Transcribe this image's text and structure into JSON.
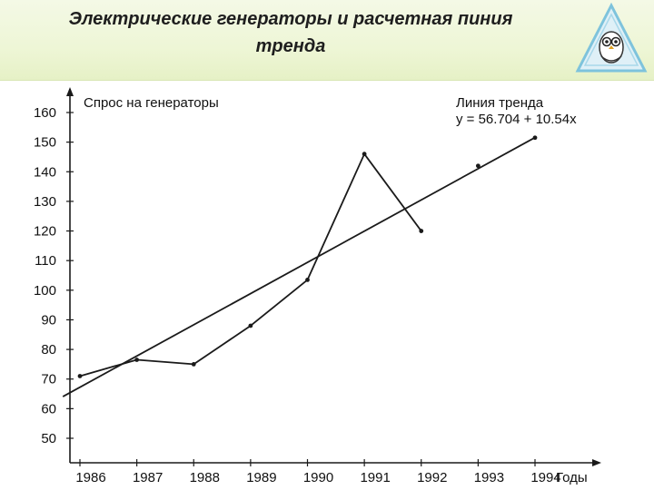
{
  "header": {
    "title_line1": "Электрические генераторы и расчетная пиния",
    "title_line2": "тренда",
    "logo_icon": "owl-triangle-logo-icon"
  },
  "chart_data": {
    "type": "line",
    "title": "",
    "ylabel": "Спрос на генераторы",
    "xlabel": "Годы",
    "categories": [
      "1986",
      "1987",
      "1988",
      "1989",
      "1990",
      "1991",
      "1992",
      "1993",
      "1994"
    ],
    "x": [
      1986,
      1987,
      1988,
      1989,
      1990,
      1991,
      1992,
      1993,
      1994
    ],
    "ylim": [
      50,
      160
    ],
    "yticks": [
      160,
      150,
      140,
      130,
      120,
      110,
      100,
      90,
      80,
      70,
      60,
      50
    ],
    "grid": false,
    "series": [
      {
        "values": [
          71,
          76.5,
          75,
          88,
          103.5,
          146,
          120,
          null,
          null
        ]
      },
      {
        "trend_points": [
          [
            1993,
            142
          ],
          [
            1994,
            151.5
          ]
        ]
      }
    ],
    "trendline": {
      "label": "Линия тренда",
      "equation": "y = 56.704 + 10.54x",
      "intercept": 56.704,
      "slope": 10.54,
      "x_start": 1985.7,
      "x_end": 1994
    },
    "colors": {
      "line": "#1a1a1a",
      "header": "#eef6d6"
    }
  }
}
